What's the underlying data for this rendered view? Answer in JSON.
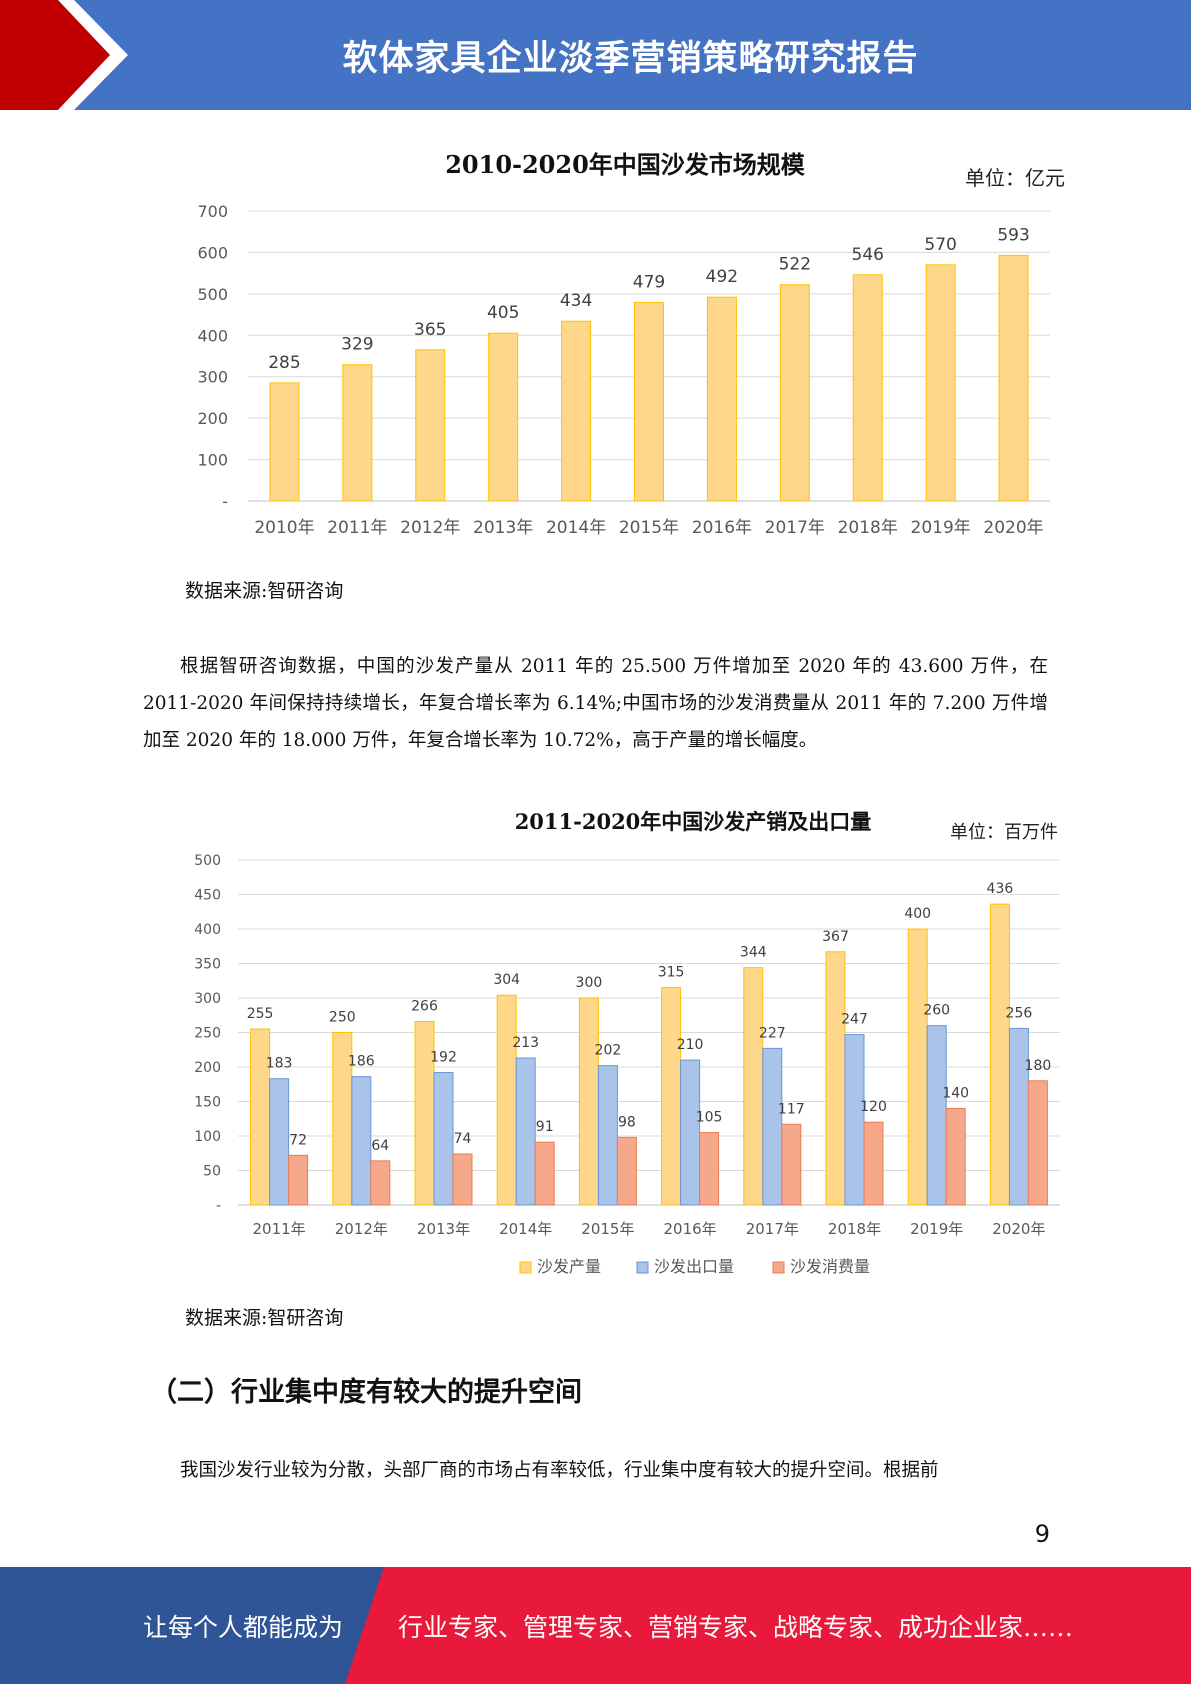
{
  "header": {
    "title": "软体家具企业淡季营销策略研究报告"
  },
  "charts": {
    "chart1": {
      "title": "2010-2020年中国沙发市场规模",
      "unit": "单位：亿元"
    },
    "chart2": {
      "title": "2011-2020年中国沙发产销及出口量",
      "unit": "单位：百万件"
    }
  },
  "chart_data": [
    {
      "type": "bar",
      "title": "2010-2020年中国沙发市场规模",
      "unit": "单位：亿元",
      "categories": [
        "2010年",
        "2011年",
        "2012年",
        "2013年",
        "2014年",
        "2015年",
        "2016年",
        "2017年",
        "2018年",
        "2019年",
        "2020年"
      ],
      "values": [
        285,
        329,
        365,
        405,
        434,
        479,
        492,
        522,
        546,
        570,
        593
      ],
      "ylim": [
        0,
        700
      ],
      "yticks": [
        "-",
        "100",
        "200",
        "300",
        "400",
        "500",
        "600",
        "700"
      ],
      "grid": true,
      "color": "#ffd78a"
    },
    {
      "type": "bar",
      "title": "2011-2020年中国沙发产销及出口量",
      "unit": "单位：百万件",
      "categories": [
        "2011年",
        "2012年",
        "2013年",
        "2014年",
        "2015年",
        "2016年",
        "2017年",
        "2018年",
        "2019年",
        "2020年"
      ],
      "series": [
        {
          "name": "沙发产量",
          "values": [
            255,
            250,
            266,
            304,
            300,
            315,
            344,
            367,
            400,
            436
          ],
          "color": "#ffd78a"
        },
        {
          "name": "沙发出口量",
          "values": [
            183,
            186,
            192,
            213,
            202,
            210,
            227,
            247,
            260,
            256
          ],
          "color": "#a9c4e8"
        },
        {
          "name": "沙发消费量",
          "values": [
            72,
            64,
            74,
            91,
            98,
            105,
            117,
            120,
            140,
            180
          ],
          "color": "#f5a98a"
        }
      ],
      "ylim": [
        0,
        500
      ],
      "yticks": [
        "-",
        "50",
        "100",
        "150",
        "200",
        "250",
        "300",
        "350",
        "400",
        "450",
        "500"
      ],
      "grid": true,
      "legend": "bottom"
    }
  ],
  "sources": {
    "source1": "数据来源:智研咨询",
    "source2": "数据来源:智研咨询"
  },
  "body": {
    "paragraph1": "根据智研咨询数据，中国的沙发产量从 2011 年的 25.500 万件增加至 2020 年的 43.600 万件，在 2011-2020 年间保持持续增长，年复合增长率为 6.14%;中国市场的沙发消费量从 2011 年的 7.200 万件增加至 2020 年的 18.000 万件，年复合增长率为 10.72%，高于产量的增长幅度。",
    "section_heading": "（二）行业集中度有较大的提升空间",
    "paragraph2": "我国沙发行业较为分散，头部厂商的市场占有率较低，行业集中度有较大的提升空间。根据前"
  },
  "page_number": "9",
  "footer": {
    "left_text": "让每个人都能成为",
    "right_text": "行业专家、管理专家、营销专家、战略专家、成功企业家……"
  },
  "colors": {
    "header_blue": "#4472c4",
    "accent_red": "#c00000",
    "footer_blue": "#2f5597",
    "footer_red": "#e8193b"
  }
}
